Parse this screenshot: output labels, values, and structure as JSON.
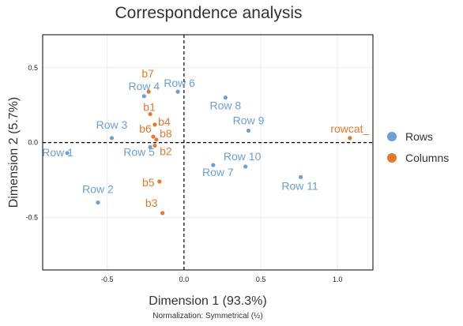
{
  "chart_data": {
    "type": "scatter",
    "title": "Correspondence analysis",
    "xlabel": "Dimension 1 (93.3%)",
    "ylabel": "Dimension 2 (5.7%)",
    "footnote": "Normalization: Symmetrical (½)",
    "xlim": [
      -0.92,
      1.23
    ],
    "ylim": [
      -0.85,
      0.72
    ],
    "x_ticks": [
      -0.5,
      0.0,
      0.5,
      1.0
    ],
    "x_tick_labels": [
      "-0.5",
      "0.0",
      "0.5",
      "1.0"
    ],
    "y_ticks": [
      0.5,
      0.0,
      -0.5
    ],
    "y_tick_labels": [
      "0.5",
      "0.0",
      "-0.5"
    ],
    "grid": true,
    "reference_lines": {
      "x": 0,
      "y": 0,
      "style": "dashed"
    },
    "legend_position": "right",
    "series": [
      {
        "name": "Rows",
        "color": "#6a9fd8",
        "points": [
          {
            "label": "Row 1",
            "x": -0.76,
            "y": -0.07
          },
          {
            "label": "Row 2",
            "x": -0.56,
            "y": -0.4
          },
          {
            "label": "Row 3",
            "x": -0.47,
            "y": 0.03
          },
          {
            "label": "Row 4",
            "x": -0.26,
            "y": 0.31
          },
          {
            "label": "Row 5",
            "x": -0.22,
            "y": -0.03
          },
          {
            "label": "Row 6",
            "x": -0.04,
            "y": 0.34
          },
          {
            "label": "Row 7",
            "x": 0.19,
            "y": -0.15
          },
          {
            "label": "Row 8",
            "x": 0.27,
            "y": 0.3
          },
          {
            "label": "Row 9",
            "x": 0.42,
            "y": 0.08
          },
          {
            "label": "Row 10",
            "x": 0.4,
            "y": -0.16
          },
          {
            "label": "Row 11",
            "x": 0.76,
            "y": -0.23
          }
        ]
      },
      {
        "name": "Columns",
        "color": "#e6782d",
        "points": [
          {
            "label": "b7",
            "x": -0.23,
            "y": 0.34
          },
          {
            "label": "b1",
            "x": -0.22,
            "y": 0.19
          },
          {
            "label": "b4",
            "x": -0.19,
            "y": 0.12
          },
          {
            "label": "b6",
            "x": -0.2,
            "y": 0.04
          },
          {
            "label": "b8",
            "x": -0.18,
            "y": 0.02
          },
          {
            "label": "b2",
            "x": -0.19,
            "y": -0.02
          },
          {
            "label": "b5",
            "x": -0.16,
            "y": -0.26
          },
          {
            "label": "b3",
            "x": -0.14,
            "y": -0.47
          },
          {
            "label": "rowcat_",
            "x": 1.08,
            "y": 0.03
          }
        ]
      }
    ]
  }
}
